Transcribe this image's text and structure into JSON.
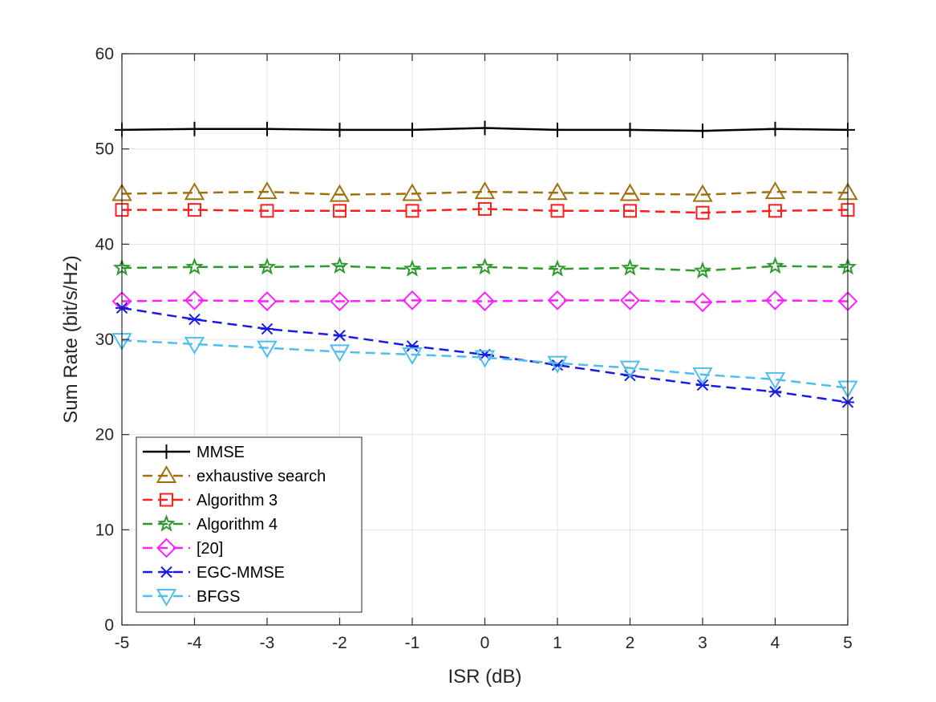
{
  "chart_data": {
    "type": "line",
    "title": "",
    "xlabel": "ISR (dB)",
    "ylabel": "Sum Rate (bit/s/Hz)",
    "x": [
      -5,
      -4,
      -3,
      -2,
      -1,
      0,
      1,
      2,
      3,
      4,
      5
    ],
    "x_tick_labels": [
      "-5",
      "-4",
      "-3",
      "-2",
      "-1",
      "0",
      "1",
      "2",
      "3",
      "4",
      "5"
    ],
    "y_ticks": [
      0,
      10,
      20,
      30,
      40,
      50,
      60
    ],
    "y_tick_labels": [
      "0",
      "10",
      "20",
      "30",
      "40",
      "50",
      "60"
    ],
    "xlim": [
      -5,
      5
    ],
    "ylim": [
      0,
      60
    ],
    "grid": true,
    "legend_position": "bottom-left",
    "series": [
      {
        "name": "MMSE",
        "color": "#000000",
        "marker": "plus",
        "dashed": false,
        "values": [
          52.0,
          52.1,
          52.1,
          52.0,
          52.0,
          52.2,
          52.0,
          52.0,
          51.9,
          52.1,
          52.0
        ]
      },
      {
        "name": "exhaustive search",
        "color": "#A0700F",
        "marker": "triangle-up",
        "dashed": true,
        "values": [
          45.3,
          45.4,
          45.5,
          45.2,
          45.3,
          45.5,
          45.4,
          45.3,
          45.2,
          45.5,
          45.4
        ]
      },
      {
        "name": "Algorithm 3",
        "color": "#FF1F1F",
        "marker": "square",
        "dashed": true,
        "values": [
          43.6,
          43.6,
          43.5,
          43.5,
          43.5,
          43.7,
          43.5,
          43.5,
          43.3,
          43.5,
          43.6
        ]
      },
      {
        "name": "Algorithm 4",
        "color": "#2E9A2E",
        "marker": "star",
        "dashed": true,
        "values": [
          37.5,
          37.6,
          37.6,
          37.7,
          37.4,
          37.6,
          37.4,
          37.5,
          37.2,
          37.7,
          37.6
        ]
      },
      {
        "name": "[20]",
        "color": "#FF1FFF",
        "marker": "diamond",
        "dashed": true,
        "values": [
          34.0,
          34.1,
          34.0,
          34.0,
          34.1,
          34.0,
          34.1,
          34.1,
          33.9,
          34.1,
          34.0
        ]
      },
      {
        "name": "EGC-MMSE",
        "color": "#1A1AE6",
        "marker": "asterisk",
        "dashed": true,
        "values": [
          33.3,
          32.1,
          31.1,
          30.4,
          29.3,
          28.4,
          27.3,
          26.2,
          25.2,
          24.5,
          23.4
        ]
      },
      {
        "name": "BFGS",
        "color": "#4DBEEE",
        "marker": "triangle-down",
        "dashed": true,
        "values": [
          29.9,
          29.5,
          29.1,
          28.7,
          28.4,
          28.1,
          27.5,
          27.0,
          26.3,
          25.8,
          24.9
        ]
      }
    ]
  }
}
